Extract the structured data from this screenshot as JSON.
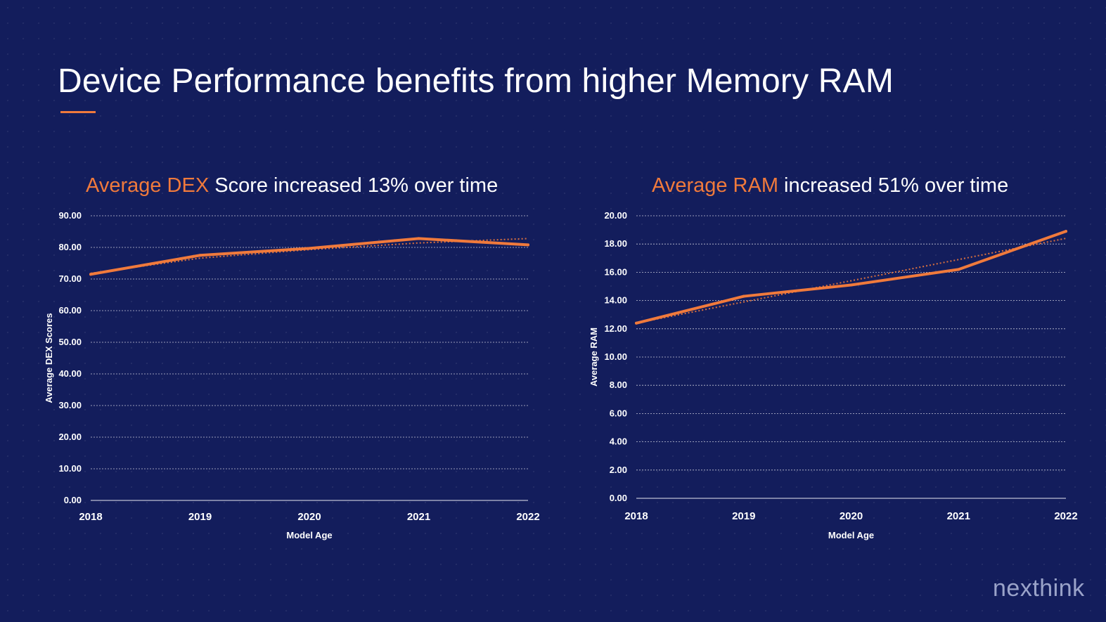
{
  "slide": {
    "title": "Device Performance benefits from higher Memory RAM",
    "logo": "nexthink"
  },
  "colors": {
    "accent": "#f07a3c",
    "background": "#131d5c"
  },
  "chart_data": [
    {
      "type": "line",
      "heading_highlight": "Average DEX",
      "heading_rest": " Score increased 13% over time",
      "xlabel": "Model Age",
      "ylabel": "Average DEX Scores",
      "categories": [
        "2018",
        "2019",
        "2020",
        "2021",
        "2022"
      ],
      "y_ticks": [
        "0.00",
        "10.00",
        "20.00",
        "30.00",
        "40.00",
        "50.00",
        "60.00",
        "70.00",
        "80.00",
        "90.00"
      ],
      "ylim": [
        0,
        90
      ],
      "grid": true,
      "series": [
        {
          "values": [
            71.5,
            77.5,
            79.7,
            82.8,
            80.8
          ]
        }
      ],
      "trendline": [
        71.8,
        76.6,
        79.3,
        81.4,
        82.8
      ]
    },
    {
      "type": "line",
      "heading_highlight": "Average RAM",
      "heading_rest": " increased 51% over time",
      "xlabel": "Model Age",
      "ylabel": "Average RAM",
      "categories": [
        "2018",
        "2019",
        "2020",
        "2021",
        "2022"
      ],
      "y_ticks": [
        "0.00",
        "2.00",
        "4.00",
        "6.00",
        "8.00",
        "10.00",
        "12.00",
        "14.00",
        "16.00",
        "18.00",
        "20.00"
      ],
      "ylim": [
        0,
        20
      ],
      "grid": true,
      "series": [
        {
          "values": [
            12.4,
            14.3,
            15.1,
            16.2,
            18.9
          ]
        }
      ],
      "trendline": [
        12.4,
        13.9,
        15.4,
        16.9,
        18.4
      ]
    }
  ]
}
